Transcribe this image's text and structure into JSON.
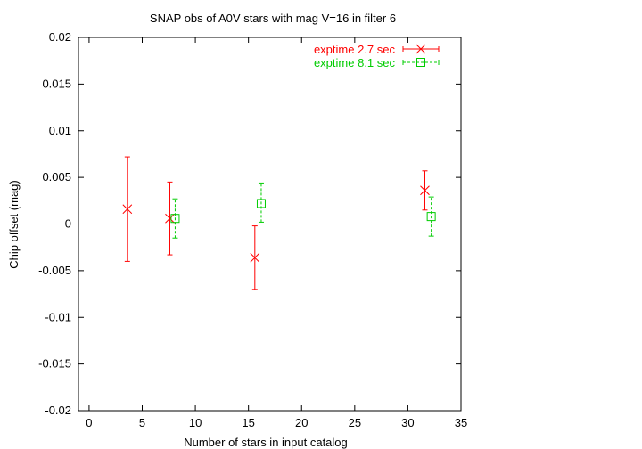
{
  "chart_data": {
    "type": "scatter",
    "title": "SNAP obs of A0V stars with mag V=16 in filter 6",
    "xlabel": "Number of stars in input catalog",
    "ylabel": "Chip offset (mag)",
    "xlim": [
      -1,
      35
    ],
    "ylim": [
      -0.02,
      0.02
    ],
    "xticks": [
      0,
      5,
      10,
      15,
      20,
      25,
      30,
      35
    ],
    "xtick_labels": [
      "0",
      "5",
      "10",
      "15",
      "20",
      "25",
      "30",
      "35"
    ],
    "yticks": [
      -0.02,
      -0.015,
      -0.01,
      -0.005,
      0,
      0.005,
      0.01,
      0.015,
      0.02
    ],
    "ytick_labels": [
      "-0.02",
      "-0.015",
      "-0.01",
      "-0.005",
      "0",
      "0.005",
      "0.01",
      "0.015",
      "0.02"
    ],
    "zero_line": true,
    "grid": false,
    "legend_position": "top-right",
    "series": [
      {
        "name": "exptime 2.7 sec",
        "color": "#ff0000",
        "marker": "cross",
        "line_style": "solid",
        "x": [
          3.6,
          7.6,
          15.6,
          31.6
        ],
        "y": [
          0.0016,
          0.0006,
          -0.0036,
          0.0036
        ],
        "err_low": [
          -0.004,
          -0.0033,
          -0.007,
          0.0015
        ],
        "err_high": [
          0.0072,
          0.0045,
          -0.0002,
          0.0057
        ]
      },
      {
        "name": "exptime 8.1 sec",
        "color": "#00cc00",
        "marker": "square",
        "line_style": "dashed",
        "x": [
          8.1,
          16.2,
          32.2
        ],
        "y": [
          0.0006,
          0.0022,
          0.0008
        ],
        "err_low": [
          -0.0015,
          0.0002,
          -0.0013
        ],
        "err_high": [
          0.0027,
          0.0044,
          0.0029
        ]
      }
    ]
  }
}
